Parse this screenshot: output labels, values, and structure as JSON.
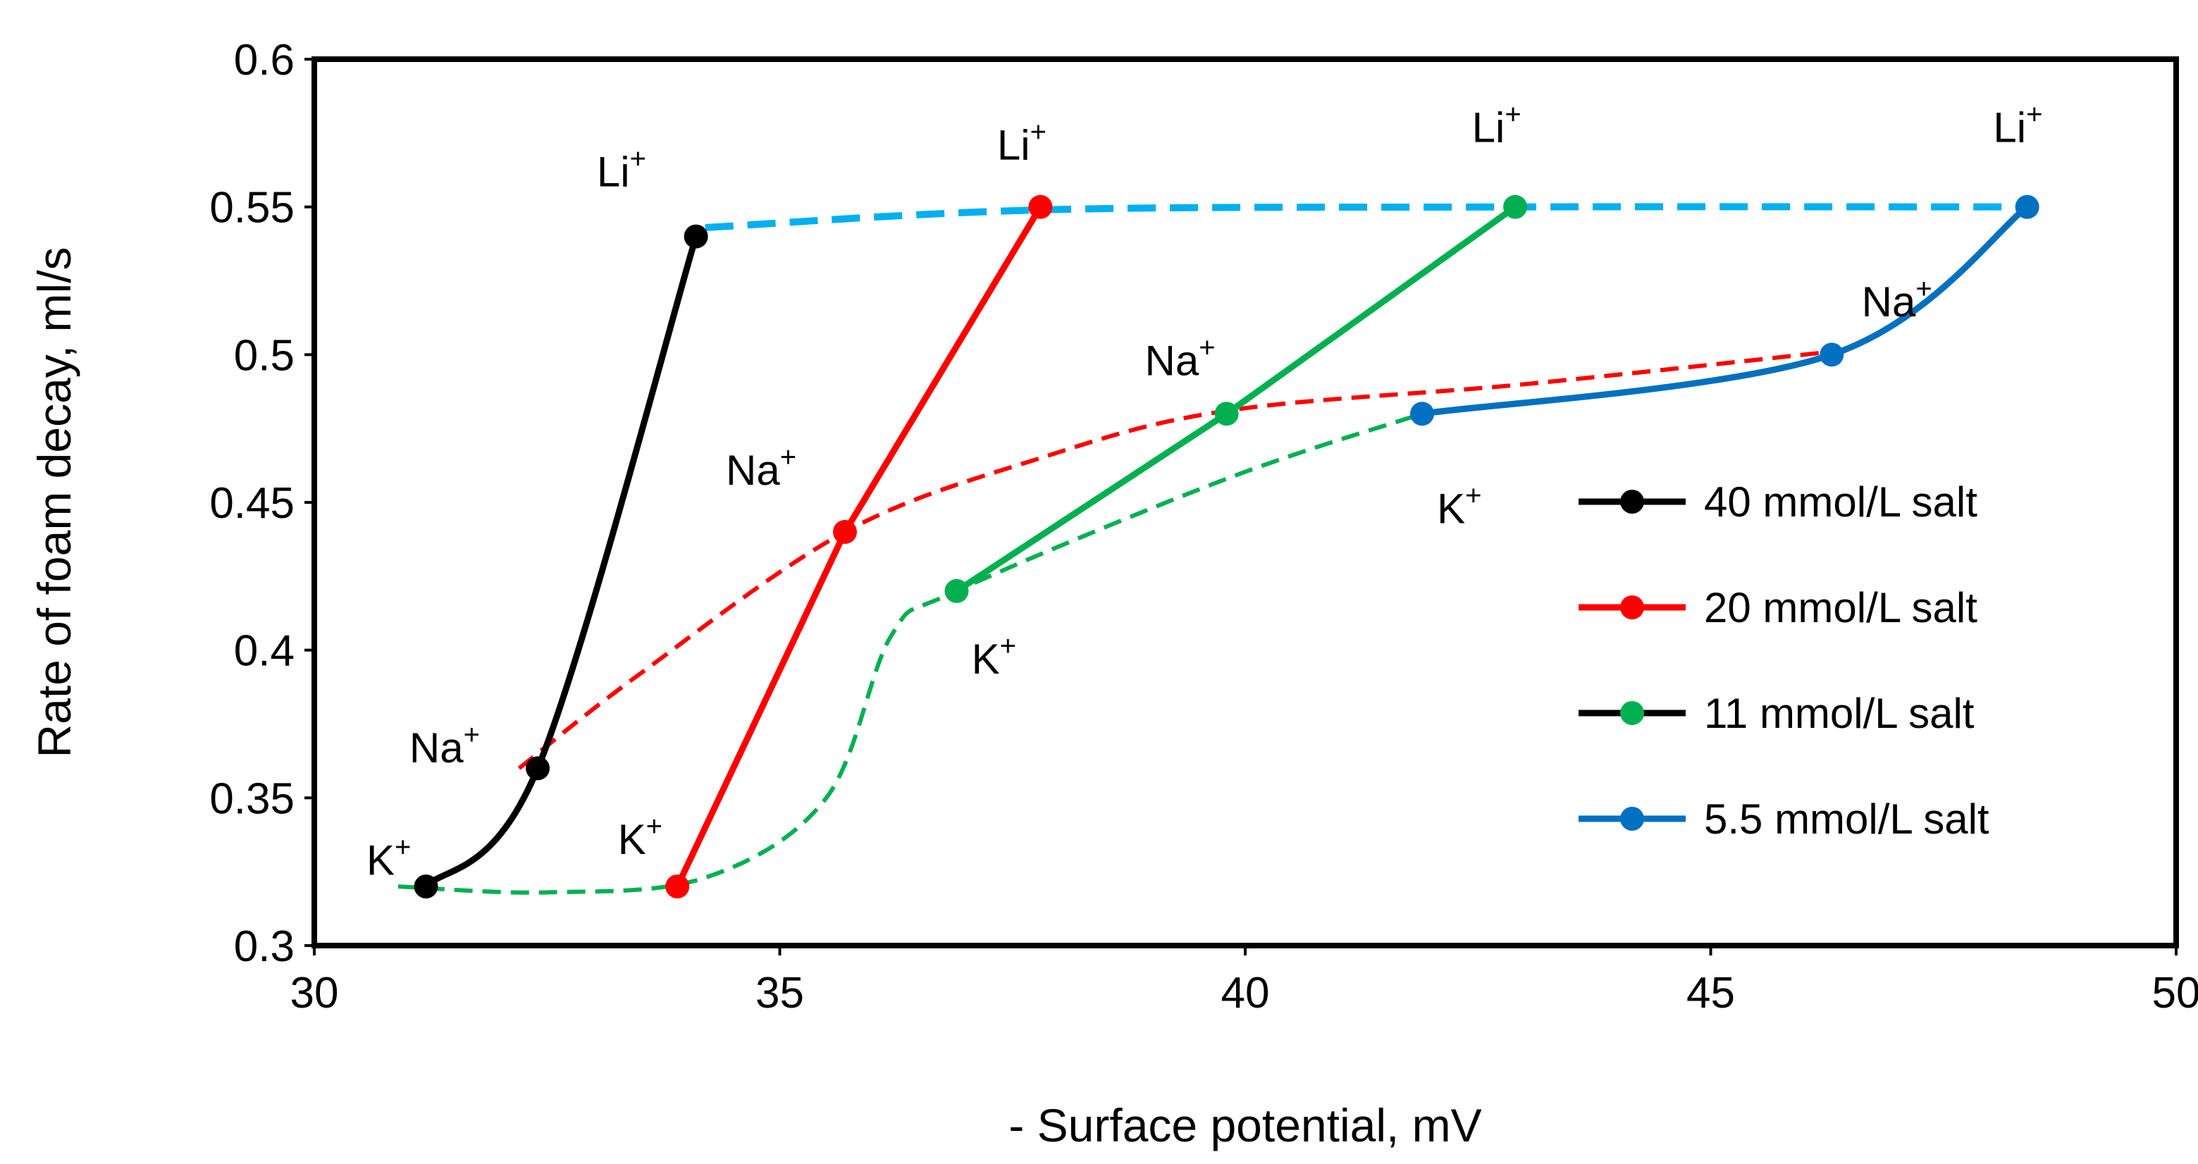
{
  "chart_data": {
    "type": "line",
    "title": "",
    "xlabel": "- Surface potential, mV",
    "ylabel": "Rate of foam decay, ml/s",
    "xlim": [
      30,
      50
    ],
    "ylim": [
      0.3,
      0.6
    ],
    "x_ticks": [
      "30",
      "35",
      "40",
      "45",
      "50"
    ],
    "y_ticks": [
      "0.3",
      "0.35",
      "0.4",
      "0.45",
      "0.5",
      "0.55",
      "0.6"
    ],
    "grid": false,
    "legend_position": "right",
    "series": [
      {
        "name": "40 mmol/L salt",
        "color": "#000000",
        "marker_color": "#000000",
        "line_color": "#000000",
        "points": [
          {
            "ion": "K",
            "x": 31.2,
            "y": 0.32
          },
          {
            "ion": "Na",
            "x": 32.4,
            "y": 0.36
          },
          {
            "ion": "Li",
            "x": 34.1,
            "y": 0.54
          }
        ]
      },
      {
        "name": "20 mmol/L salt",
        "color": "#ff0000",
        "marker_color": "#ff0000",
        "line_color": "#ff0000",
        "points": [
          {
            "ion": "K",
            "x": 33.9,
            "y": 0.32
          },
          {
            "ion": "Na",
            "x": 35.7,
            "y": 0.44
          },
          {
            "ion": "Li",
            "x": 37.8,
            "y": 0.55
          }
        ]
      },
      {
        "name": "11 mmol/L salt",
        "color": "#00b050",
        "marker_color": "#00b050",
        "line_color": "#000000",
        "points": [
          {
            "ion": "K",
            "x": 36.9,
            "y": 0.42
          },
          {
            "ion": "Na",
            "x": 39.8,
            "y": 0.48
          },
          {
            "ion": "Li",
            "x": 42.9,
            "y": 0.55
          }
        ]
      },
      {
        "name": "5.5 mmol/L salt",
        "color": "#0070c0",
        "marker_color": "#0070c0",
        "line_color": "#0070c0",
        "points": [
          {
            "ion": "K",
            "x": 41.9,
            "y": 0.48
          },
          {
            "ion": "Na",
            "x": 46.3,
            "y": 0.5
          },
          {
            "ion": "Li",
            "x": 48.4,
            "y": 0.55
          }
        ]
      }
    ],
    "trend_lines": [
      {
        "name": "Li trend",
        "style": "dashed",
        "color": "#00b0f0",
        "points": [
          [
            34.2,
            0.543
          ],
          [
            37.8,
            0.549
          ],
          [
            42.9,
            0.55
          ],
          [
            48.4,
            0.55
          ]
        ]
      },
      {
        "name": "Na trend",
        "style": "dashed",
        "color": "#ff0000",
        "points": [
          [
            32.2,
            0.36
          ],
          [
            33.5,
            0.392
          ],
          [
            35.7,
            0.44
          ],
          [
            37.8,
            0.465
          ],
          [
            39.8,
            0.481
          ],
          [
            43.0,
            0.49
          ],
          [
            46.3,
            0.501
          ]
        ]
      },
      {
        "name": "K trend",
        "style": "dashed",
        "color": "#00b050",
        "points": [
          [
            30.9,
            0.32
          ],
          [
            32.5,
            0.318
          ],
          [
            34.2,
            0.323
          ],
          [
            35.5,
            0.35
          ],
          [
            36.2,
            0.405
          ],
          [
            36.9,
            0.42
          ],
          [
            39.8,
            0.458
          ],
          [
            41.9,
            0.48
          ]
        ]
      }
    ],
    "ion_labels": [
      {
        "base": "Li",
        "sup": "+",
        "x": 33.3,
        "y": 0.557
      },
      {
        "base": "Li",
        "sup": "+",
        "x": 37.6,
        "y": 0.566
      },
      {
        "base": "Li",
        "sup": "+",
        "x": 42.7,
        "y": 0.572
      },
      {
        "base": "Li",
        "sup": "+",
        "x": 48.3,
        "y": 0.572
      },
      {
        "base": "Na",
        "sup": "+",
        "x": 47.0,
        "y": 0.513
      },
      {
        "base": "Na",
        "sup": "+",
        "x": 39.3,
        "y": 0.493
      },
      {
        "base": "Na",
        "sup": "+",
        "x": 34.8,
        "y": 0.456
      },
      {
        "base": "Na",
        "sup": "+",
        "x": 31.4,
        "y": 0.362
      },
      {
        "base": "K",
        "sup": "+",
        "x": 42.3,
        "y": 0.443
      },
      {
        "base": "K",
        "sup": "+",
        "x": 37.3,
        "y": 0.392
      },
      {
        "base": "K",
        "sup": "+",
        "x": 33.5,
        "y": 0.331
      },
      {
        "base": "K",
        "sup": "+",
        "x": 30.8,
        "y": 0.324
      }
    ]
  }
}
